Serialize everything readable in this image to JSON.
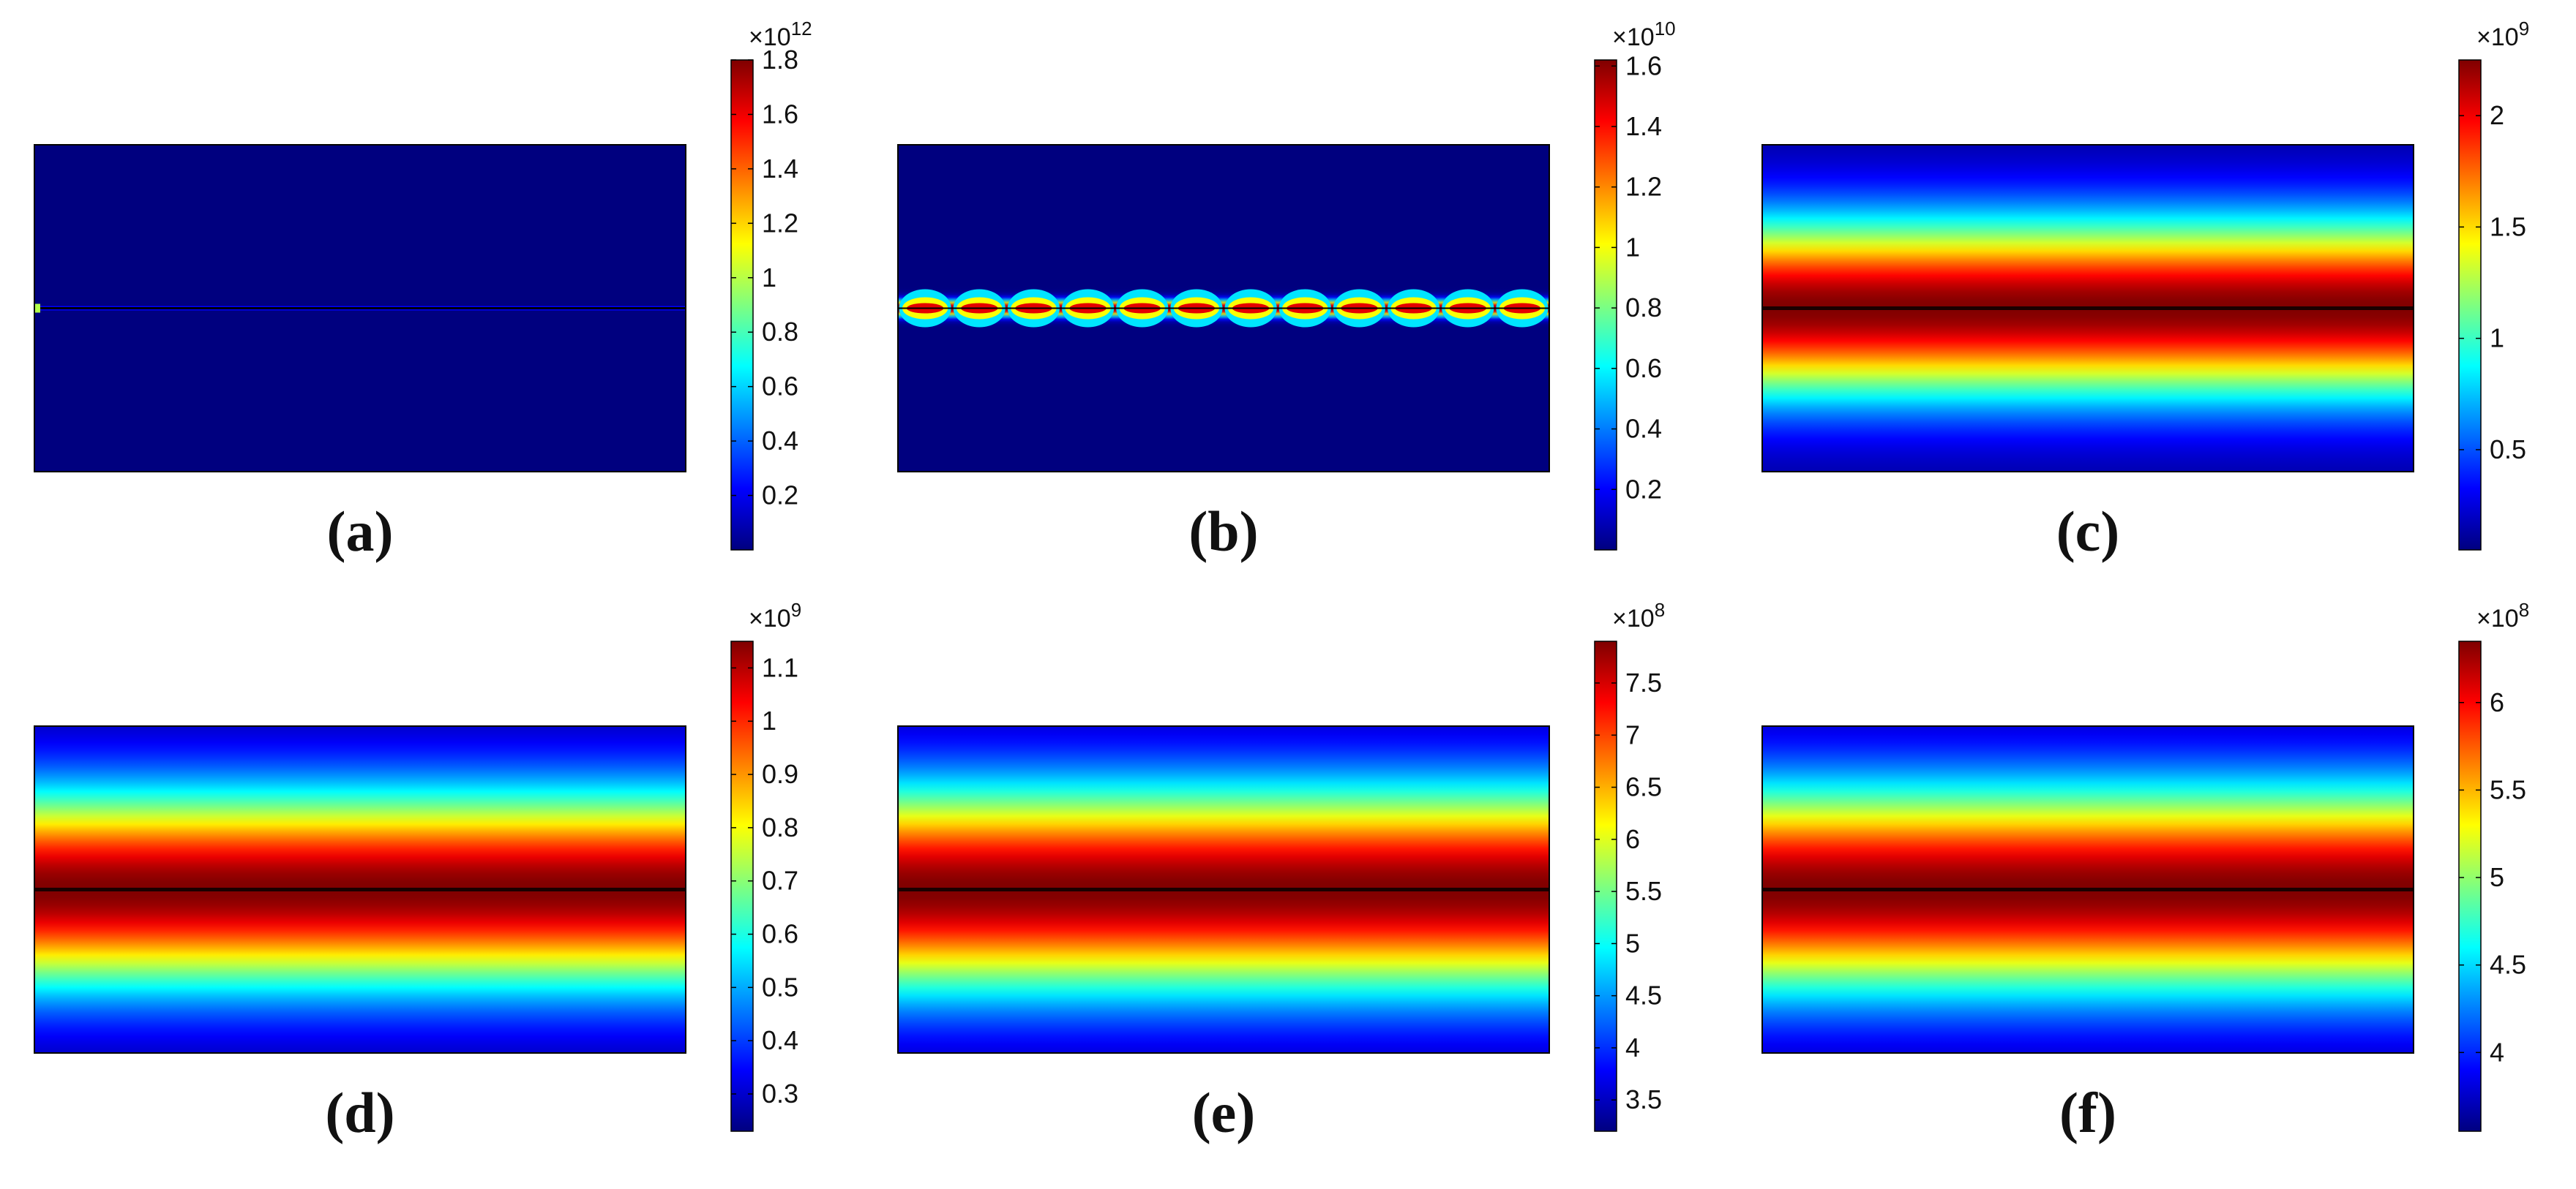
{
  "colormap": [
    "#00007f",
    "#0000ff",
    "#007fff",
    "#00ffff",
    "#7fff7f",
    "#ffff00",
    "#ff7f00",
    "#ff0000",
    "#7f0000"
  ],
  "chart_data": [
    {
      "type": "heatmap",
      "panel_label": "(a)",
      "colorbar": {
        "exponent_label": "×10",
        "exponent_power": "12",
        "range": [
          0.0,
          1.8
        ],
        "ticks": [
          "0.2",
          "0.4",
          "0.6",
          "0.8",
          "1",
          "1.2",
          "1.4",
          "1.6",
          "1.8"
        ]
      },
      "field": "thin line of peak intensity at vertical center, background near minimum"
    },
    {
      "type": "heatmap",
      "panel_label": "(b)",
      "colorbar": {
        "exponent_label": "×10",
        "exponent_power": "10",
        "range": [
          0.0,
          1.62
        ],
        "ticks": [
          "0.2",
          "0.4",
          "0.6",
          "0.8",
          "1",
          "1.2",
          "1.4",
          "1.6"
        ]
      },
      "field": "periodic chain of hot spots along vertical center (12 periods)"
    },
    {
      "type": "heatmap",
      "panel_label": "(c)",
      "colorbar": {
        "exponent_label": "×10",
        "exponent_power": "9",
        "range": [
          0.05,
          2.25
        ],
        "ticks": [
          "0.5",
          "1",
          "1.5",
          "2"
        ]
      },
      "field": "broad horizontal band peaking at vertical center"
    },
    {
      "type": "heatmap",
      "panel_label": "(d)",
      "colorbar": {
        "exponent_label": "×10",
        "exponent_power": "9",
        "range": [
          0.23,
          1.15
        ],
        "ticks": [
          "0.3",
          "0.4",
          "0.5",
          "0.6",
          "0.7",
          "0.8",
          "0.9",
          "1",
          "1.1"
        ]
      },
      "field": "broad horizontal band peaking at vertical center"
    },
    {
      "type": "heatmap",
      "panel_label": "(e)",
      "colorbar": {
        "exponent_label": "×10",
        "exponent_power": "8",
        "range": [
          3.2,
          7.9
        ],
        "ticks": [
          "3.5",
          "4",
          "4.5",
          "5",
          "5.5",
          "6",
          "6.5",
          "7",
          "7.5"
        ]
      },
      "field": "broad horizontal band peaking at vertical center"
    },
    {
      "type": "heatmap",
      "panel_label": "(f)",
      "colorbar": {
        "exponent_label": "×10",
        "exponent_power": "8",
        "range": [
          3.55,
          6.35
        ],
        "ticks": [
          "4",
          "4.5",
          "5",
          "5.5",
          "6"
        ]
      },
      "field": "broad horizontal band peaking at vertical center"
    }
  ]
}
